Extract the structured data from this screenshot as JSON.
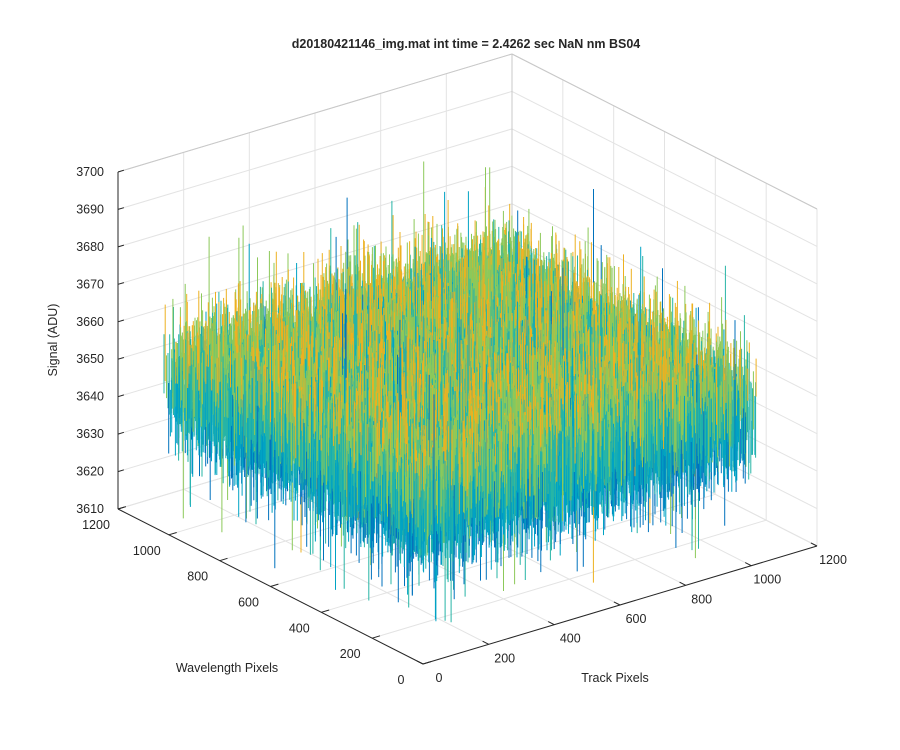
{
  "chart_data": {
    "type": "surface",
    "title": "d20180421146_img.mat int time = 2.4262 sec  NaN nm BS04",
    "xlabel": "Track Pixels",
    "ylabel": "Wavelength Pixels",
    "zlabel": "Signal (ADU)",
    "xlim": [
      0,
      1200
    ],
    "ylim": [
      0,
      1200
    ],
    "zlim": [
      3610,
      3700
    ],
    "xticks": [
      0,
      200,
      400,
      600,
      800,
      1000,
      1200
    ],
    "yticks": [
      0,
      200,
      400,
      600,
      800,
      1000,
      1200
    ],
    "zticks": [
      3610,
      3620,
      3630,
      3640,
      3650,
      3660,
      3670,
      3680,
      3690,
      3700
    ],
    "data_extent": {
      "x": [
        1,
        1024
      ],
      "y": [
        1,
        1024
      ]
    },
    "signal_mean": 3650,
    "signal_typical_range": [
      3625,
      3675
    ],
    "signal_extremes": [
      3615,
      3690
    ],
    "grid": true,
    "colormap": [
      "#0072BD",
      "#00A3C4",
      "#27B5A6",
      "#8CC95A",
      "#EDB120"
    ]
  }
}
